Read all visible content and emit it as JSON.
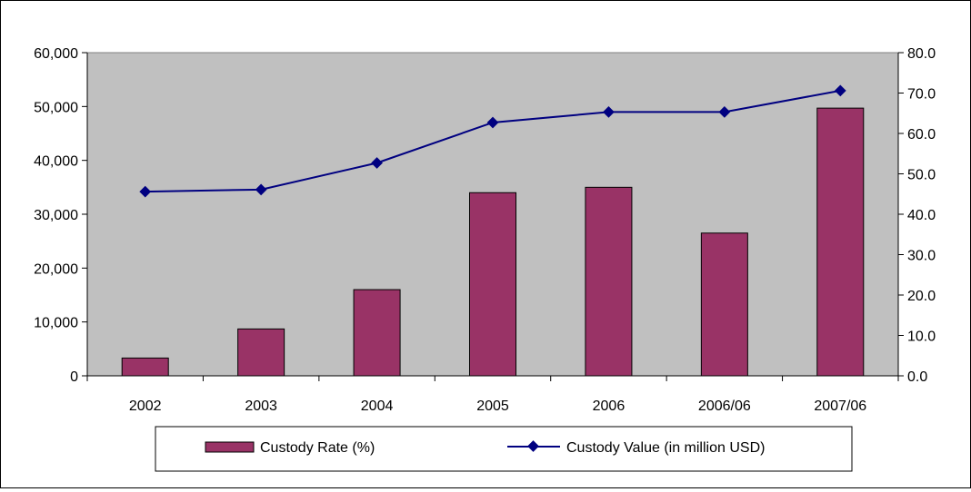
{
  "chart_data": {
    "type": "bar",
    "categories": [
      "2002",
      "2003",
      "2004",
      "2005",
      "2006",
      "2006/06",
      "2007/06"
    ],
    "series": [
      {
        "name": "Custody Rate (%)",
        "type": "bar",
        "axis": "left",
        "values": [
          3300,
          8700,
          16000,
          34000,
          35000,
          26500,
          49700
        ],
        "color": "#993366"
      },
      {
        "name": "Custody Value (in million USD)",
        "type": "line",
        "axis": "right",
        "values": [
          45.6,
          46.1,
          52.7,
          62.7,
          65.3,
          65.3,
          70.6
        ],
        "color": "#000080"
      }
    ],
    "y_left": {
      "min": 0,
      "max": 60000,
      "step": 10000,
      "tick_labels": [
        "0",
        "10,000",
        "20,000",
        "30,000",
        "40,000",
        "50,000",
        "60,000"
      ]
    },
    "y_right": {
      "min": 0,
      "max": 80,
      "step": 10,
      "tick_labels": [
        "0.0",
        "10.0",
        "20.0",
        "30.0",
        "40.0",
        "50.0",
        "60.0",
        "70.0",
        "80.0"
      ]
    },
    "plot_background": "#c0c0c0",
    "grid": false,
    "legend_position": "bottom"
  }
}
